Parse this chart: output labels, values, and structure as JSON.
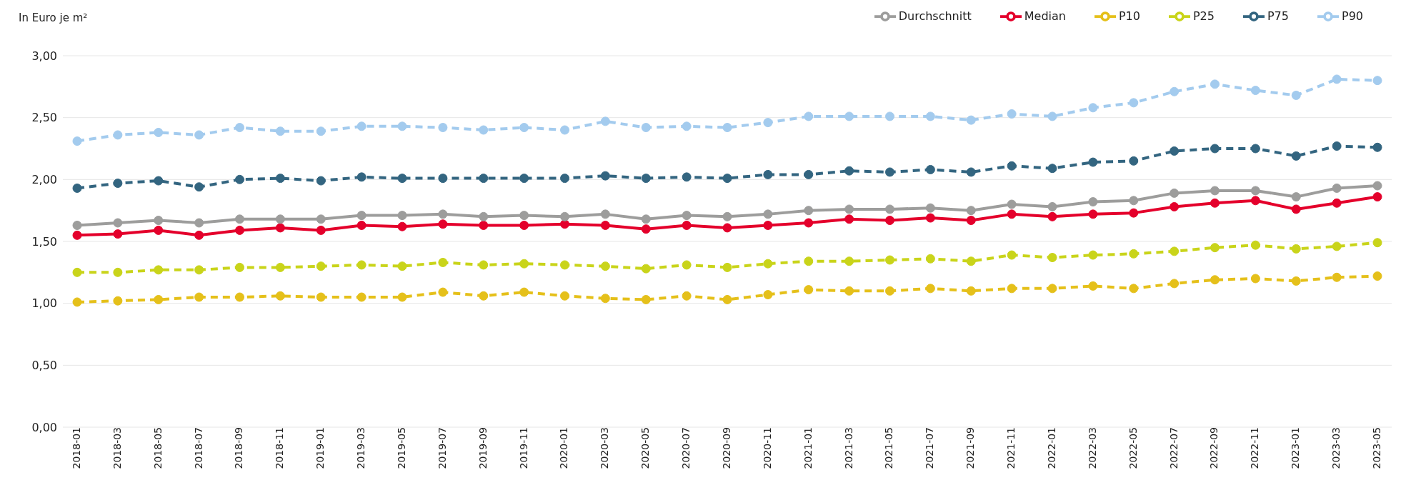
{
  "chart_data": {
    "type": "line",
    "ylabel": "In Euro je m²",
    "categories": [
      "2018-01",
      "2018-03",
      "2018-05",
      "2018-07",
      "2018-09",
      "2018-11",
      "2019-01",
      "2019-03",
      "2019-05",
      "2019-07",
      "2019-09",
      "2019-11",
      "2020-01",
      "2020-03",
      "2020-05",
      "2020-07",
      "2020-09",
      "2020-11",
      "2021-01",
      "2021-03",
      "2021-05",
      "2021-07",
      "2021-09",
      "2021-11",
      "2022-01",
      "2022-03",
      "2022-05",
      "2022-07",
      "2022-09",
      "2022-11",
      "2023-01",
      "2023-03",
      "2023-05"
    ],
    "series": [
      {
        "name": "Median",
        "color": "#e4002b",
        "line_style": "solid",
        "values": [
          1.55,
          1.56,
          1.59,
          1.55,
          1.59,
          1.61,
          1.59,
          1.63,
          1.62,
          1.64,
          1.63,
          1.63,
          1.64,
          1.63,
          1.6,
          1.63,
          1.61,
          1.63,
          1.65,
          1.68,
          1.67,
          1.69,
          1.67,
          1.72,
          1.7,
          1.72,
          1.73,
          1.78,
          1.81,
          1.83,
          1.76,
          1.81,
          1.86
        ]
      },
      {
        "name": "Durchschnitt",
        "color": "#9d9d9c",
        "line_style": "solid",
        "values": [
          1.63,
          1.65,
          1.67,
          1.65,
          1.68,
          1.68,
          1.68,
          1.71,
          1.71,
          1.72,
          1.7,
          1.71,
          1.7,
          1.72,
          1.68,
          1.71,
          1.7,
          1.72,
          1.75,
          1.76,
          1.76,
          1.77,
          1.75,
          1.8,
          1.78,
          1.82,
          1.83,
          1.89,
          1.91,
          1.91,
          1.86,
          1.93,
          1.95
        ]
      },
      {
        "name": "P10",
        "color": "#e5c01a",
        "line_style": "dashed",
        "values": [
          1.01,
          1.02,
          1.03,
          1.05,
          1.05,
          1.06,
          1.05,
          1.05,
          1.05,
          1.09,
          1.06,
          1.09,
          1.06,
          1.04,
          1.03,
          1.06,
          1.03,
          1.07,
          1.11,
          1.1,
          1.1,
          1.12,
          1.1,
          1.12,
          1.12,
          1.14,
          1.12,
          1.16,
          1.19,
          1.2,
          1.18,
          1.21,
          1.22
        ]
      },
      {
        "name": "P25",
        "color": "#c9d41a",
        "line_style": "dashed",
        "values": [
          1.25,
          1.25,
          1.27,
          1.27,
          1.29,
          1.29,
          1.3,
          1.31,
          1.3,
          1.33,
          1.31,
          1.32,
          1.31,
          1.3,
          1.28,
          1.31,
          1.29,
          1.32,
          1.34,
          1.34,
          1.35,
          1.36,
          1.34,
          1.39,
          1.37,
          1.39,
          1.4,
          1.42,
          1.45,
          1.47,
          1.44,
          1.46,
          1.49
        ]
      },
      {
        "name": "P75",
        "color": "#336580",
        "line_style": "dashed",
        "values": [
          1.93,
          1.97,
          1.99,
          1.94,
          2.0,
          2.01,
          1.99,
          2.02,
          2.01,
          2.01,
          2.01,
          2.01,
          2.01,
          2.03,
          2.01,
          2.02,
          2.01,
          2.04,
          2.04,
          2.07,
          2.06,
          2.08,
          2.06,
          2.11,
          2.09,
          2.14,
          2.15,
          2.23,
          2.25,
          2.25,
          2.19,
          2.27,
          2.26
        ]
      },
      {
        "name": "P90",
        "color": "#a3cbee",
        "line_style": "dashed",
        "values": [
          2.31,
          2.36,
          2.38,
          2.36,
          2.42,
          2.39,
          2.39,
          2.43,
          2.43,
          2.42,
          2.4,
          2.42,
          2.4,
          2.47,
          2.42,
          2.43,
          2.42,
          2.46,
          2.51,
          2.51,
          2.51,
          2.51,
          2.48,
          2.53,
          2.51,
          2.58,
          2.62,
          2.71,
          2.77,
          2.72,
          2.68,
          2.81,
          2.8
        ]
      }
    ],
    "ylim": [
      0,
      3
    ],
    "yticks": [
      {
        "value": 0,
        "label": "0,00"
      },
      {
        "value": 0.5,
        "label": "0,50"
      },
      {
        "value": 1,
        "label": "1,00"
      },
      {
        "value": 1.5,
        "label": "1,50"
      },
      {
        "value": 2,
        "label": "2,00"
      },
      {
        "value": 2.5,
        "label": "2,50"
      },
      {
        "value": 3,
        "label": "3,00"
      }
    ],
    "grid": "y",
    "legend": "top right",
    "marker": "circle"
  }
}
